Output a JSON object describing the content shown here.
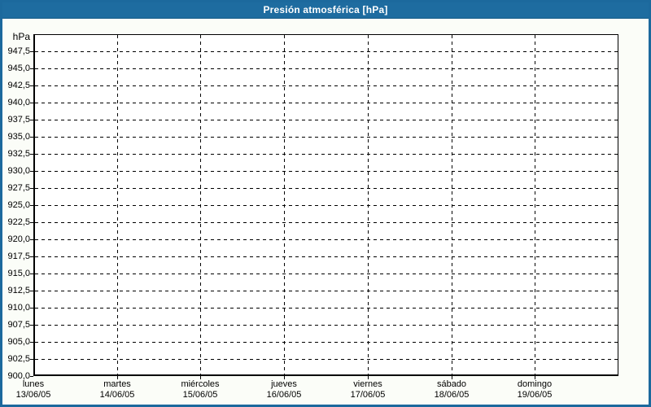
{
  "window": {
    "title": "Presión atmosférica [hPa]"
  },
  "colors": {
    "accent_blue": "#1c699d",
    "titlebar_blue": "#1e6ca0",
    "plot_border": "#000000",
    "gridline": "#000000",
    "plot_background": "#ffffff",
    "page_background": "#fbfdf8",
    "title_text": "#ffffff",
    "axis_text": "#000000"
  },
  "chart_data": {
    "type": "line",
    "title": "Presión atmosférica [hPa]",
    "y_unit": "hPa",
    "ylabel": "hPa",
    "xlabel": "",
    "ylim": [
      900,
      950
    ],
    "y_tick_step": 2.5,
    "decimal_separator": ",",
    "grid": "dashed",
    "legend": "none",
    "series": [],
    "y_tick_labels": [
      "947,5",
      "945,0",
      "942,5",
      "940,0",
      "937,5",
      "935,0",
      "932,5",
      "930,0",
      "927,5",
      "925,0",
      "922,5",
      "920,0",
      "917,5",
      "915,0",
      "912,5",
      "910,0",
      "907,5",
      "905,0",
      "902,5",
      "900,0"
    ],
    "y_tick_values": [
      947.5,
      945.0,
      942.5,
      940.0,
      937.5,
      935.0,
      932.5,
      930.0,
      927.5,
      925.0,
      922.5,
      920.0,
      917.5,
      915.0,
      912.5,
      910.0,
      907.5,
      905.0,
      902.5,
      900.0
    ],
    "x_categories": [
      {
        "day": "lunes",
        "date": "13/06/05"
      },
      {
        "day": "martes",
        "date": "14/06/05"
      },
      {
        "day": "miércoles",
        "date": "15/06/05"
      },
      {
        "day": "jueves",
        "date": "16/06/05"
      },
      {
        "day": "viernes",
        "date": "17/06/05"
      },
      {
        "day": "sábado",
        "date": "18/06/05"
      },
      {
        "day": "domingo",
        "date": "19/06/05"
      }
    ]
  }
}
